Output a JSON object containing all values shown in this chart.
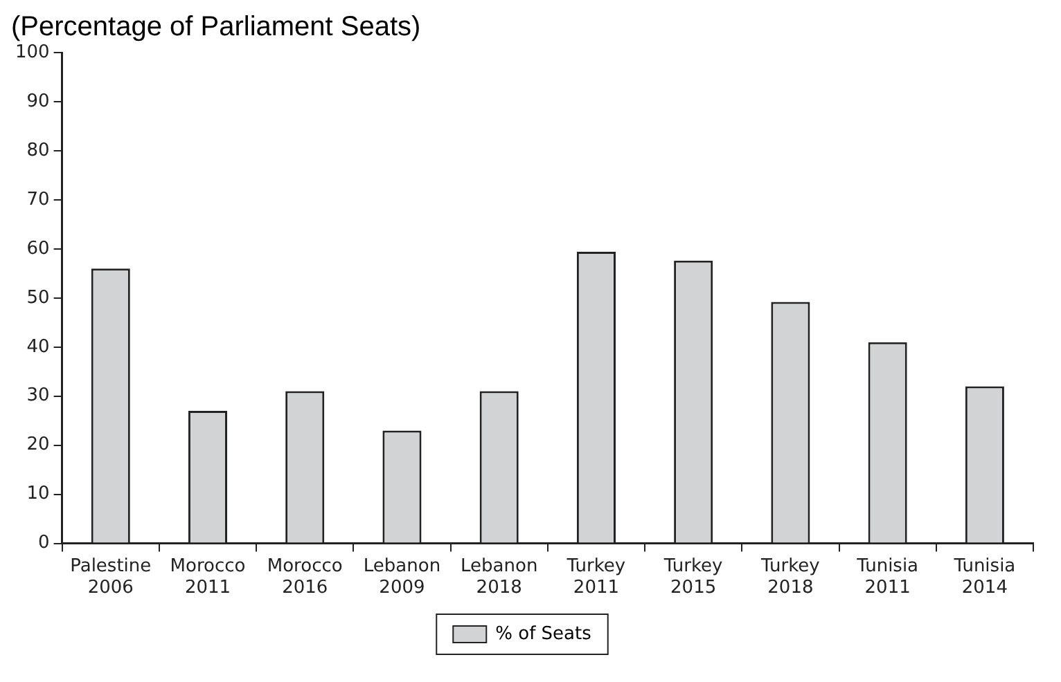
{
  "chart_data": {
    "type": "bar",
    "title": "(Percentage of Parliament Seats)",
    "categories": [
      "Palestine 2006",
      "Morocco 2011",
      "Morocco 2016",
      "Lebanon 2009",
      "Lebanon 2018",
      "Turkey 2011",
      "Turkey 2015",
      "Turkey 2018",
      "Tunisia 2011",
      "Tunisia 2014"
    ],
    "series": [
      {
        "name": "% of Seats",
        "color": "#d1d3d4",
        "values": [
          56,
          27,
          31,
          23,
          31,
          59.4,
          57.6,
          49.2,
          41,
          32
        ]
      }
    ],
    "ylim": [
      0,
      100
    ],
    "yticks": [
      0,
      10,
      20,
      30,
      40,
      50,
      60,
      70,
      80,
      90,
      100
    ],
    "grid": false,
    "legend": "bottom"
  }
}
